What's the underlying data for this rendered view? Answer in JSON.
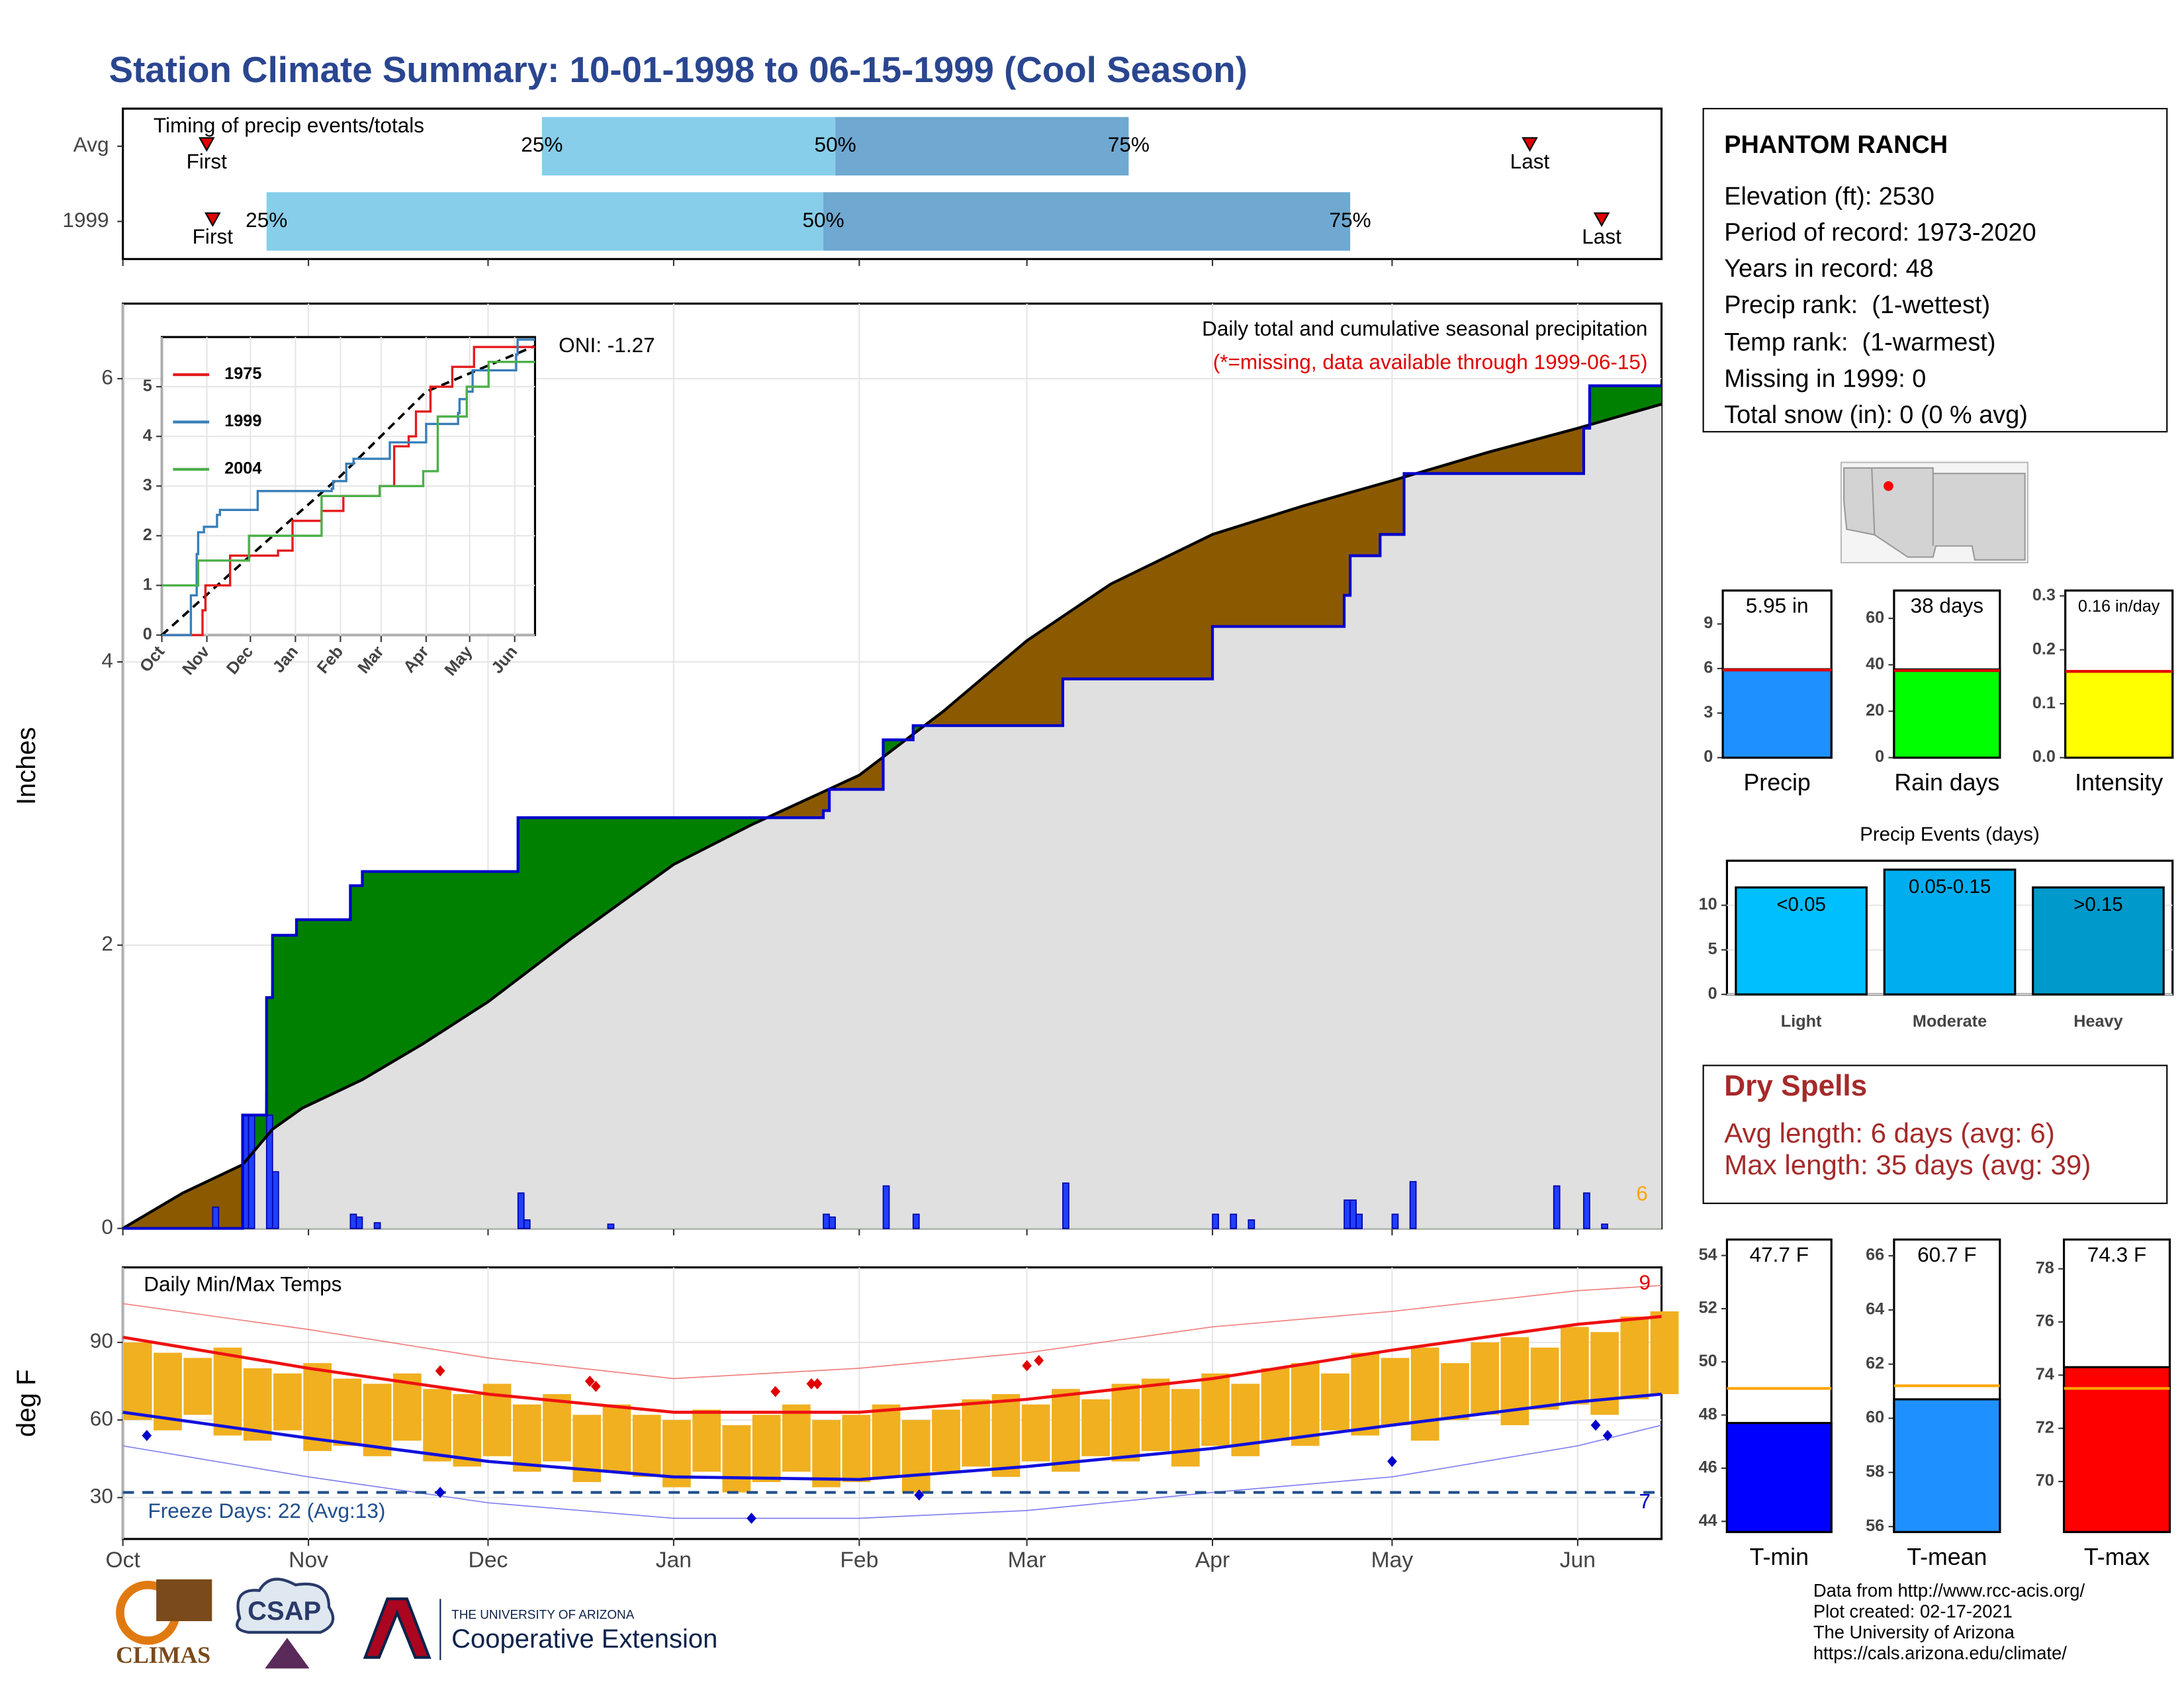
{
  "title": "Station Climate Summary: 10-01-1998 to 06-15-1999 (Cool Season)",
  "station": {
    "name": "PHANTOM RANCH",
    "lines": [
      "Elevation (ft): 2530",
      "Period of record: 1973-2020",
      "Years in record: 48",
      "Precip rank:  (1-wettest)",
      "Temp rank:  (1-warmest)",
      "Missing in 1999: 0",
      "Total snow (in): 0 (0 % avg)"
    ]
  },
  "dry_spells": {
    "title": "Dry Spells",
    "lines": [
      "Avg length: 6 days (avg: 6)",
      "Max length: 35 days (avg: 39)"
    ]
  },
  "footer": [
    "Data from http://www.rcc-acis.org/",
    "Plot created: 02-17-2021",
    "The University of Arizona",
    "https://cals.arizona.edu/climate/"
  ],
  "logos": {
    "climas": "CLIMAS",
    "csap": "CSAP",
    "university": "THE UNIVERSITY OF ARIZONA",
    "extension": "Cooperative Extension"
  },
  "chart_data": [
    {
      "type": "timing",
      "title": "Timing of precip events/totals",
      "categories": [
        "Avg",
        "1999"
      ],
      "xlim": [
        0,
        257
      ],
      "xticks": [
        0,
        31,
        61,
        92,
        123,
        151,
        182,
        212,
        243
      ],
      "first": [
        14,
        15
      ],
      "q25": [
        70,
        24
      ],
      "q50": [
        119,
        117
      ],
      "q75": [
        168,
        205
      ],
      "last": [
        235,
        247
      ],
      "labels": {
        "first": "First",
        "last": "Last",
        "q25": "25%",
        "q50": "50%",
        "q75": "75%"
      },
      "colors": {
        "early": "#87ceeb",
        "late": "#6fa8d0",
        "marker": "#e00000"
      }
    },
    {
      "type": "cumulative",
      "title": "Daily total and cumulative seasonal precipitation",
      "subtitle": "(*=missing, data available through 1999-06-15)",
      "annotation": "ONI: -1.27",
      "note": "6",
      "y_label": "Inches",
      "xlim": [
        0,
        257
      ],
      "xticks": [
        0,
        31,
        61,
        92,
        123,
        151,
        182,
        212,
        243
      ],
      "ylim": [
        0,
        6.53
      ],
      "yticks": [
        0,
        2,
        4,
        6
      ],
      "grid": true,
      "observed": {
        "name": "1999",
        "color": "#0000cc",
        "x": [
          0,
          20,
          24,
          25,
          29,
          38,
          40,
          66,
          117,
          118,
          127,
          132,
          157,
          182,
          204,
          205,
          210,
          214,
          244,
          245,
          257
        ],
        "values": [
          0,
          0.8,
          1.63,
          2.07,
          2.18,
          2.42,
          2.52,
          2.9,
          2.95,
          3.1,
          3.45,
          3.55,
          3.88,
          4.25,
          4.47,
          4.75,
          4.9,
          5.33,
          5.65,
          5.95,
          5.95
        ]
      },
      "average": {
        "color": "#000000",
        "x": [
          0,
          10,
          20,
          25,
          30,
          40,
          50,
          61,
          75,
          92,
          105,
          123,
          137,
          151,
          165,
          182,
          197,
          212,
          228,
          243,
          257
        ],
        "values": [
          0,
          0.25,
          0.45,
          0.7,
          0.85,
          1.05,
          1.3,
          1.6,
          2.05,
          2.57,
          2.85,
          3.2,
          3.65,
          4.15,
          4.55,
          4.9,
          5.1,
          5.28,
          5.48,
          5.65,
          5.82
        ]
      },
      "daily": {
        "color": "#1f3fff",
        "x": [
          15,
          20,
          21,
          24,
          25,
          38,
          39,
          42,
          66,
          67,
          81,
          117,
          118,
          127,
          132,
          157,
          182,
          185,
          188,
          204,
          205,
          206,
          212,
          215,
          239,
          244,
          247
        ],
        "values": [
          0.15,
          0.8,
          0.8,
          0.8,
          0.4,
          0.1,
          0.08,
          0.04,
          0.25,
          0.06,
          0.03,
          0.1,
          0.08,
          0.3,
          0.1,
          0.32,
          0.1,
          0.1,
          0.06,
          0.2,
          0.2,
          0.1,
          0.1,
          0.33,
          0.3,
          0.25,
          0.03
        ]
      },
      "fills": {
        "above": "#008000",
        "below": "#8b5a00",
        "base": "#e0e0e0"
      }
    },
    {
      "type": "line",
      "xlim": [
        0,
        257
      ],
      "xticks": [
        {
          "value": 0,
          "label": "Oct"
        },
        {
          "value": 31,
          "label": "Nov"
        },
        {
          "value": 61,
          "label": "Dec"
        },
        {
          "value": 92,
          "label": "Jan"
        },
        {
          "value": 123,
          "label": "Feb"
        },
        {
          "value": 151,
          "label": "Mar"
        },
        {
          "value": 182,
          "label": "Apr"
        },
        {
          "value": 212,
          "label": "May"
        },
        {
          "value": 243,
          "label": "Jun"
        }
      ],
      "ylim": [
        0,
        6
      ],
      "yticks": [
        0,
        1,
        2,
        3,
        4,
        5
      ],
      "grid": true,
      "series": [
        {
          "name": "1975",
          "color": "#e41a1c",
          "x": [
            0,
            25,
            28,
            30,
            45,
            47,
            55,
            80,
            90,
            110,
            125,
            150,
            160,
            170,
            175,
            185,
            200,
            215,
            257
          ],
          "values": [
            0,
            0,
            0.5,
            1,
            1,
            1.6,
            1.6,
            1.7,
            2.3,
            2.5,
            2.8,
            3,
            3.8,
            4,
            4.5,
            5,
            5.4,
            5.8,
            5.8
          ]
        },
        {
          "name": "1999",
          "color": "#377eb8",
          "x": [
            0,
            20,
            24,
            25,
            29,
            38,
            40,
            66,
            117,
            118,
            127,
            132,
            157,
            182,
            204,
            205,
            210,
            214,
            244,
            245,
            257
          ],
          "values": [
            0,
            0.8,
            1.63,
            2.07,
            2.18,
            2.42,
            2.52,
            2.9,
            2.95,
            3.1,
            3.45,
            3.55,
            3.88,
            4.25,
            4.47,
            4.75,
            4.9,
            5.33,
            5.65,
            5.95,
            5.95
          ]
        },
        {
          "name": "2004",
          "color": "#4daf4a",
          "x": [
            0,
            20,
            25,
            45,
            60,
            80,
            110,
            150,
            180,
            190,
            210,
            225,
            257
          ],
          "values": [
            1,
            1,
            1.5,
            1.5,
            2,
            2,
            2.8,
            3,
            3.3,
            4.4,
            5,
            5.5,
            5.5
          ]
        }
      ],
      "average": {
        "color": "#000000",
        "x": [
          0,
          61,
          123,
          182,
          243,
          257
        ],
        "values": [
          0,
          1.6,
          3.2,
          4.9,
          5.65,
          5.82
        ]
      }
    },
    {
      "type": "temperature",
      "title": "Daily Min/Max Temps",
      "y_label": "deg F",
      "annotation": "Freeze Days: 22 (Avg:13)",
      "note_high": "9",
      "note_low": "7",
      "xlim": [
        0,
        257
      ],
      "xticks": [
        {
          "value": 0,
          "label": "Oct"
        },
        {
          "value": 31,
          "label": "Nov"
        },
        {
          "value": 61,
          "label": "Dec"
        },
        {
          "value": 92,
          "label": "Jan"
        },
        {
          "value": 123,
          "label": "Feb"
        },
        {
          "value": 151,
          "label": "Mar"
        },
        {
          "value": 182,
          "label": "Apr"
        },
        {
          "value": 212,
          "label": "May"
        },
        {
          "value": 243,
          "label": "Jun"
        }
      ],
      "ylim": [
        14,
        119
      ],
      "yticks": [
        30,
        60,
        90
      ],
      "grid": true,
      "freeze_line": 32,
      "daily": {
        "color": "#f0b020",
        "x": [
          0,
          5,
          10,
          15,
          20,
          25,
          30,
          35,
          40,
          45,
          50,
          55,
          60,
          65,
          70,
          75,
          80,
          85,
          90,
          95,
          100,
          105,
          110,
          115,
          120,
          125,
          130,
          135,
          140,
          145,
          150,
          155,
          160,
          165,
          170,
          175,
          180,
          185,
          190,
          195,
          200,
          205,
          210,
          215,
          220,
          225,
          230,
          235,
          240,
          245,
          250,
          255
        ],
        "highs": [
          90,
          86,
          84,
          88,
          80,
          78,
          82,
          76,
          74,
          78,
          72,
          70,
          74,
          66,
          70,
          62,
          66,
          62,
          60,
          64,
          58,
          62,
          66,
          60,
          62,
          66,
          60,
          64,
          68,
          70,
          66,
          72,
          68,
          74,
          76,
          72,
          78,
          74,
          80,
          82,
          78,
          86,
          84,
          88,
          82,
          90,
          92,
          88,
          96,
          94,
          100,
          102
        ],
        "lows": [
          60,
          56,
          62,
          54,
          52,
          56,
          48,
          50,
          46,
          52,
          44,
          42,
          46,
          40,
          44,
          36,
          40,
          38,
          34,
          40,
          32,
          36,
          40,
          34,
          36,
          38,
          32,
          40,
          42,
          38,
          44,
          40,
          46,
          44,
          48,
          42,
          50,
          46,
          52,
          50,
          56,
          54,
          58,
          52,
          60,
          62,
          58,
          64,
          66,
          62,
          68,
          70
        ]
      },
      "series": [
        {
          "name": "avg max",
          "color": "#ee1111",
          "width": 2.2,
          "x": [
            0,
            31,
            61,
            92,
            123,
            151,
            182,
            212,
            243,
            257
          ],
          "values": [
            92,
            80,
            70,
            63,
            63,
            68,
            76,
            87,
            97,
            100
          ]
        },
        {
          "name": "avg min",
          "color": "#1111dd",
          "width": 2.2,
          "x": [
            0,
            31,
            61,
            92,
            123,
            151,
            182,
            212,
            243,
            257
          ],
          "values": [
            63,
            53,
            44,
            38,
            37,
            42,
            49,
            58,
            67,
            70
          ]
        },
        {
          "name": "record max",
          "color": "#f08080",
          "width": 0.8,
          "x": [
            0,
            31,
            61,
            92,
            123,
            151,
            182,
            212,
            243,
            257
          ],
          "values": [
            105,
            95,
            84,
            76,
            80,
            86,
            96,
            102,
            110,
            112
          ]
        },
        {
          "name": "record min",
          "color": "#8080f0",
          "width": 0.8,
          "x": [
            0,
            31,
            61,
            92,
            123,
            151,
            182,
            212,
            243,
            257
          ],
          "values": [
            50,
            38,
            28,
            22,
            22,
            25,
            32,
            38,
            50,
            58
          ]
        }
      ],
      "record_highs": {
        "color": "#e00000",
        "x": [
          53,
          78,
          79,
          109,
          115,
          116,
          151,
          153
        ],
        "values": [
          79,
          75,
          73,
          71,
          74,
          74,
          81,
          83
        ]
      },
      "record_lows": {
        "color": "#0000cc",
        "x": [
          4,
          53,
          105,
          133,
          212,
          246,
          248
        ],
        "values": [
          54,
          32,
          22,
          31,
          44,
          58,
          54
        ]
      }
    },
    {
      "type": "summary-bar",
      "categories": [
        "Precip"
      ],
      "values": [
        5.95
      ],
      "value_labels": [
        "5.95 in"
      ],
      "average": 5.9,
      "ylim": [
        0,
        11.25
      ],
      "yticks": [
        0,
        3,
        6,
        9
      ],
      "color": "#1e90ff",
      "average_color": "#e00000"
    },
    {
      "type": "summary-bar",
      "categories": [
        "Rain days"
      ],
      "values": [
        38
      ],
      "value_labels": [
        "38 days"
      ],
      "average": 37.5,
      "ylim": [
        0,
        72
      ],
      "yticks": [
        0,
        20,
        40,
        60
      ],
      "color": "#00ff00",
      "average_color": "#e00000"
    },
    {
      "type": "summary-bar",
      "categories": [
        "Intensity"
      ],
      "values": [
        0.16
      ],
      "value_labels": [
        "0.16 in/day"
      ],
      "average": 0.16,
      "ylim": [
        0,
        0.31
      ],
      "yticks": [
        {
          "value": 0,
          "label": "0.0"
        },
        {
          "value": 0.1,
          "label": "0.1"
        },
        {
          "value": 0.2,
          "label": "0.2"
        },
        {
          "value": 0.3,
          "label": "0.3"
        }
      ],
      "color": "#ffff00",
      "average_color": "#e00000"
    },
    {
      "type": "events",
      "title": "Precip Events (days)",
      "categories": [
        "Light",
        "Moderate",
        "Heavy"
      ],
      "values": [
        12,
        14,
        12
      ],
      "bin_labels": [
        "<0.05",
        "0.05-0.15",
        ">0.15"
      ],
      "colors": [
        "#00bfff",
        "#00aeef",
        "#0099cc"
      ],
      "ylim": [
        0,
        15
      ],
      "yticks": [
        0,
        5,
        10
      ],
      "grid": true
    },
    {
      "type": "summary-bar",
      "categories": [
        "T-min"
      ],
      "values": [
        47.7
      ],
      "value_labels": [
        "47.7 F"
      ],
      "average": 49.0,
      "ylim": [
        43.6,
        54.6
      ],
      "yticks": [
        44,
        46,
        48,
        50,
        52,
        54
      ],
      "color": "#0000ff",
      "average_color": "#ffa500"
    },
    {
      "type": "summary-bar",
      "categories": [
        "T-mean"
      ],
      "values": [
        60.7
      ],
      "value_labels": [
        "60.7 F"
      ],
      "average": 61.2,
      "ylim": [
        55.8,
        66.6
      ],
      "yticks": [
        56,
        58,
        60,
        62,
        64,
        66
      ],
      "color": "#1e90ff",
      "average_color": "#ffa500"
    },
    {
      "type": "summary-bar",
      "categories": [
        "T-max"
      ],
      "values": [
        74.3
      ],
      "value_labels": [
        "74.3 F"
      ],
      "average": 73.5,
      "ylim": [
        68.1,
        79.1
      ],
      "yticks": [
        70,
        72,
        74,
        76,
        78
      ],
      "color": "#ff0000",
      "average_color": "#ffa500"
    }
  ]
}
